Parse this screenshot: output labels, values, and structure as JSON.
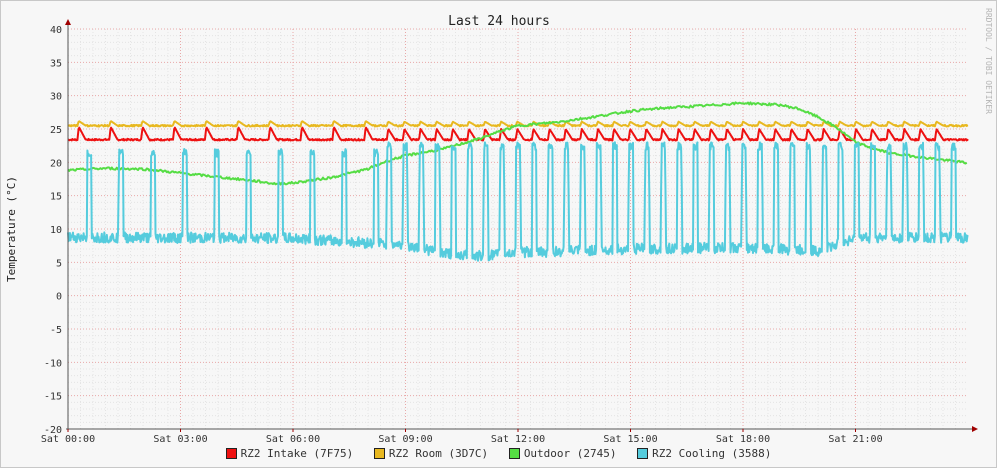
{
  "chart_data": {
    "type": "line",
    "title": "Last 24 hours",
    "ylabel": "Temperature (°C)",
    "watermark": "RRDTOOL / TOBI OETIKER",
    "ylim": [
      -20,
      40
    ],
    "y_ticks": [
      40,
      35,
      30,
      25,
      20,
      15,
      10,
      5,
      0,
      -5,
      -10,
      -15,
      -20
    ],
    "x_hours": [
      0,
      24
    ],
    "x_ticks": [
      {
        "hour": 0,
        "label": "Sat 00:00"
      },
      {
        "hour": 3,
        "label": "Sat 03:00"
      },
      {
        "hour": 6,
        "label": "Sat 06:00"
      },
      {
        "hour": 9,
        "label": "Sat 09:00"
      },
      {
        "hour": 12,
        "label": "Sat 12:00"
      },
      {
        "hour": 15,
        "label": "Sat 15:00"
      },
      {
        "hour": 18,
        "label": "Sat 18:00"
      },
      {
        "hour": 21,
        "label": "Sat 21:00"
      }
    ],
    "grid": true,
    "legend_position": "bottom",
    "series": [
      {
        "name": "RZ2 Intake (7F75)",
        "color": "#ee1111",
        "baseline": 23.4,
        "spikes": [
          {
            "from_hour": 0.25,
            "period_hours": 0.85,
            "until_hour": 8.5,
            "peak": 25.3
          },
          {
            "from_hour": 8.5,
            "period_hours": 0.43,
            "until_hour": 23.5,
            "peak": 25.0
          }
        ]
      },
      {
        "name": "RZ2 Room (3D7C)",
        "color": "#e8b820",
        "baseline": 25.5,
        "spikes": [
          {
            "from_hour": 0.25,
            "period_hours": 0.85,
            "until_hour": 8.5,
            "peak": 26.2
          },
          {
            "from_hour": 8.5,
            "period_hours": 0.43,
            "until_hour": 23.5,
            "peak": 26.1
          }
        ]
      },
      {
        "name": "Outdoor (2745)",
        "color": "#55dd44",
        "points": [
          [
            0,
            18.8
          ],
          [
            1,
            19.1
          ],
          [
            2,
            19.0
          ],
          [
            3,
            18.4
          ],
          [
            4,
            17.8
          ],
          [
            5,
            17.2
          ],
          [
            5.5,
            16.8
          ],
          [
            6,
            16.9
          ],
          [
            7,
            17.7
          ],
          [
            8,
            19.0
          ],
          [
            8.5,
            20.2
          ],
          [
            9,
            21.0
          ],
          [
            10,
            22.0
          ],
          [
            11,
            23.6
          ],
          [
            11.5,
            24.6
          ],
          [
            12,
            25.5
          ],
          [
            13,
            26.0
          ],
          [
            14,
            26.8
          ],
          [
            15,
            27.7
          ],
          [
            16,
            28.2
          ],
          [
            17,
            28.5
          ],
          [
            18,
            28.9
          ],
          [
            19,
            28.6
          ],
          [
            19.5,
            28.0
          ],
          [
            20,
            26.8
          ],
          [
            20.5,
            25.2
          ],
          [
            21,
            23.0
          ],
          [
            21.5,
            22.0
          ],
          [
            22,
            21.3
          ],
          [
            23,
            20.6
          ],
          [
            24,
            19.9
          ]
        ]
      },
      {
        "name": "RZ2 Cooling (3588)",
        "color": "#55ccdd",
        "baseline_points": [
          [
            0,
            8.8
          ],
          [
            3,
            8.7
          ],
          [
            6,
            8.6
          ],
          [
            9,
            7.6
          ],
          [
            10,
            6.4
          ],
          [
            11,
            5.9
          ],
          [
            12,
            6.5
          ],
          [
            13,
            6.6
          ],
          [
            15,
            7.0
          ],
          [
            18,
            7.2
          ],
          [
            20,
            6.7
          ],
          [
            21,
            8.7
          ],
          [
            24,
            8.7
          ]
        ],
        "spikes": [
          {
            "from_hour": 0.5,
            "period_hours": 0.85,
            "until_hour": 8.5,
            "peak": 22.0
          },
          {
            "from_hour": 8.5,
            "period_hours": 0.43,
            "until_hour": 23.6,
            "peak": 23.0
          }
        ]
      }
    ]
  }
}
